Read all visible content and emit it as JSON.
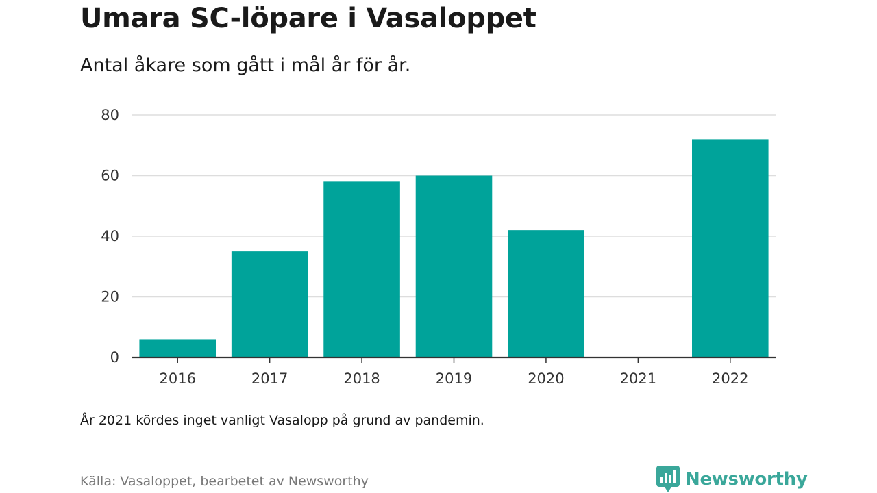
{
  "header": {
    "title": "Umara SC-löpare i Vasaloppet",
    "subtitle": "Antal åkare som gått i mål år för år."
  },
  "chart_data": {
    "type": "bar",
    "categories": [
      "2016",
      "2017",
      "2018",
      "2019",
      "2020",
      "2021",
      "2022"
    ],
    "values": [
      6,
      35,
      58,
      60,
      42,
      0,
      72
    ],
    "title": "Umara SC-löpare i Vasaloppet",
    "subtitle": "Antal åkare som gått i mål år för år.",
    "xlabel": "",
    "ylabel": "",
    "ylim": [
      0,
      80
    ],
    "yticks": [
      0,
      20,
      40,
      60,
      80
    ],
    "grid": true,
    "bar_color": "#00a39a",
    "gridline_color": "#dddddd",
    "axis_color": "#333333"
  },
  "footer": {
    "note": "År 2021 kördes inget vanligt Vasalopp på grund av pandemin.",
    "source": "Källa: Vasaloppet, bearbetet av Newsworthy"
  },
  "brand": {
    "name": "Newsworthy",
    "icon": "newsworthy-logo-icon",
    "color": "#3aa79a"
  }
}
